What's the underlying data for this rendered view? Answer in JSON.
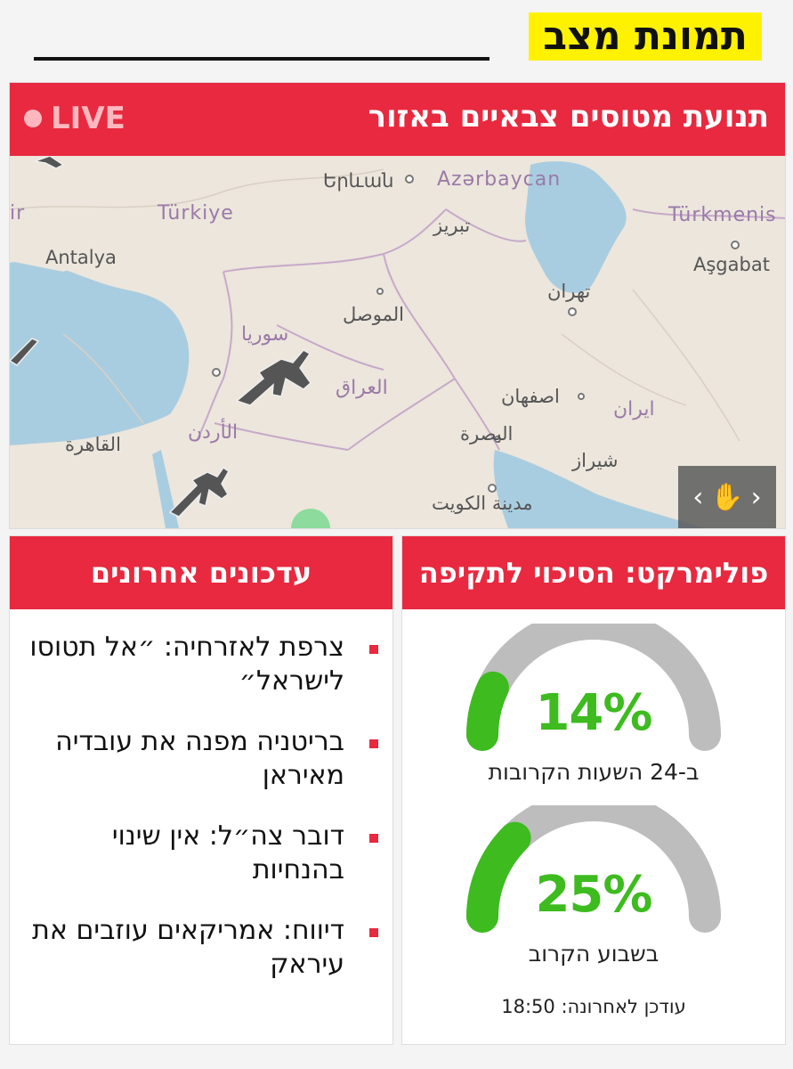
{
  "header": {
    "title": "תמונת מצב"
  },
  "map_card": {
    "title": "תנועת מטוסים צבאיים באזור",
    "live": "LIVE",
    "labels": {
      "yerevan": "Երևան",
      "azerbaycan": "Azərbaycan",
      "turkiye": "Türkiye",
      "turkmenistan": "Türkmenis",
      "tabriz": "تبریز",
      "antalya": "Antalya",
      "asgabat": "Aşgabat",
      "mosul": "الموصل",
      "tehran": "تهران",
      "syria": "سوريا",
      "iraq": "العراق",
      "isfahan": "اصفهان",
      "iran": "ایران",
      "jordan": "الأردن",
      "basra": "البصرة",
      "cairo": "القاهرة",
      "shiraz": "شیراز",
      "kuwait": "مدينة الكويت",
      "left_edge": "ir"
    }
  },
  "updates": {
    "title": "עדכונים אחרונים",
    "items": [
      "צרפת לאזרחיה: ״אל תטוסו לישראל״",
      "בריטניה מפנה את עובדיה מאיראן",
      "דובר צה״ל: אין שינוי בהנחיות",
      "דיווח: אמריקאים עוזבים את עיראק"
    ]
  },
  "polymarket": {
    "title": "פולימרקט: הסיכוי לתקיפה",
    "gauges": [
      {
        "value_label": "14%",
        "value": 0.14,
        "caption": "ב-24 השעות הקרובות"
      },
      {
        "value_label": "25%",
        "value": 0.25,
        "caption": "בשבוע הקרוב"
      }
    ],
    "last_updated": "עודכן לאחרונה: 18:50"
  },
  "colors": {
    "accent": "#e8293f",
    "highlight": "#fff200",
    "gauge_fill": "#3dbb1f",
    "gauge_track": "#bdbdbd",
    "water": "#a9cde0"
  }
}
